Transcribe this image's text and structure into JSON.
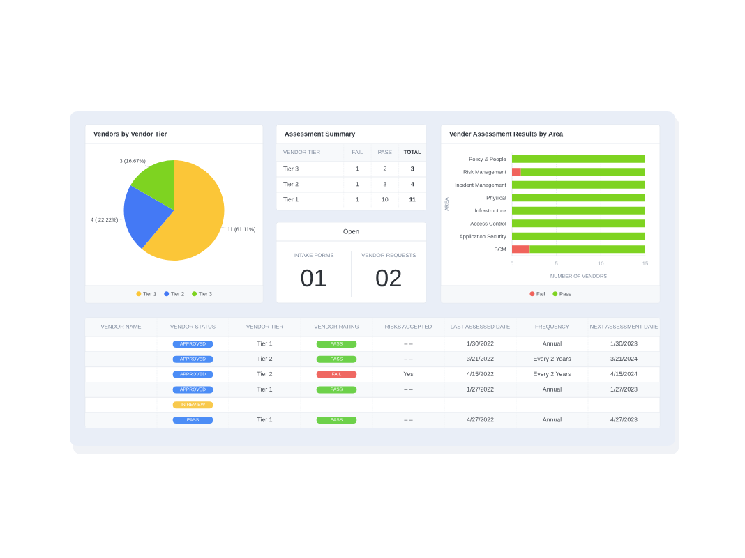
{
  "chart_data": [
    {
      "type": "pie",
      "title": "Vendors by Vendor Tier",
      "categories": [
        "Tier 1",
        "Tier 2",
        "Tier 3"
      ],
      "values": [
        11,
        4,
        3
      ],
      "colors": [
        "#fbc638",
        "#4479f5",
        "#7ed321"
      ],
      "value_labels": [
        "11 (61.11%)",
        "4 ( 22.22%)",
        "3 (16.67%)"
      ],
      "legend": "bottom"
    },
    {
      "type": "other",
      "title": "Assessment Summary",
      "categories": [
        "VENDOR TIER",
        "FAIL",
        "PASS",
        "TOTAL"
      ],
      "annotations": [
        "Tier 3",
        "1",
        "2",
        "3",
        "Tier 2",
        "1",
        "3",
        "4",
        "Tier 1",
        "1",
        "10",
        "11"
      ]
    },
    {
      "type": "other",
      "title": "Open",
      "categories": [
        "INTAKE FORMS",
        "VENDOR REQUESTS"
      ],
      "annotations": [
        "01",
        "02"
      ]
    },
    {
      "type": "bar",
      "orientation": "horizontal",
      "stacked": true,
      "title": "Vender Assessment Results by Area",
      "categories": [
        "Policy & People",
        "Risk Management",
        "Incident Management",
        "Physical",
        "Infrastructure",
        "Access Control",
        "Application Security",
        "BCM"
      ],
      "series": [
        {
          "name": "Fail",
          "color": "#f0635c",
          "values": [
            0,
            1,
            0,
            0,
            0,
            0,
            0,
            2
          ]
        },
        {
          "name": "Pass",
          "color": "#7ed321",
          "values": [
            15,
            14,
            15,
            15,
            15,
            15,
            15,
            13
          ]
        }
      ],
      "xlim": [
        0,
        15
      ],
      "xticks": [
        0,
        5,
        10,
        15
      ],
      "xlabel": "NUMBER OF VENDORS",
      "ylabel": "AREA",
      "grid": "x",
      "legend": "bottom"
    },
    {
      "type": "other",
      "y_categories": [
        null,
        null,
        null,
        null,
        null,
        null
      ],
      "annotations": [
        "VENDOR NAME",
        "VENDOR STATUS",
        "VENDOR TIER",
        "VENDOR RATING",
        "RISKS ACCEPTED",
        "LAST ASSESSED DATE",
        "FREQUENCY",
        "NEXT ASSESSMENT DATE",
        "APPROVED",
        "Tier 1",
        "PASS",
        "– –",
        "1/30/2022",
        "Annual",
        "1/30/2023",
        "APPROVED",
        "Tier 2",
        "PASS",
        "– –",
        "3/21/2022",
        "Every 2 Years",
        "3/21/2024",
        "APPROVED",
        "Tier 2",
        "FAIL",
        "Yes",
        "4/15/2022",
        "Every 2 Years",
        "4/15/2024",
        "APPROVED",
        "Tier 1",
        "PASS",
        "– –",
        "1/27/2022",
        "Annual",
        "1/27/2023",
        "IN REVIEW",
        "– –",
        "– –",
        "– –",
        "– –",
        "– –",
        "– –",
        "PASS",
        "Tier 1",
        "PASS",
        "– –",
        "4/27/2022",
        "Annual",
        "4/27/2023"
      ],
      "colors": [
        null,
        null,
        null,
        null,
        null,
        null,
        null,
        null,
        "#4c8df6",
        null,
        "#6dd14a",
        null,
        null,
        null,
        null,
        "#4c8df6",
        null,
        "#6dd14a",
        null,
        null,
        null,
        null,
        "#4c8df6",
        null,
        "#ef6862",
        null,
        null,
        null,
        null,
        "#4c8df6",
        null,
        "#6dd14a",
        null,
        null,
        null,
        null,
        "#f8c94c",
        null,
        null,
        null,
        null,
        null,
        null,
        "#4c8df6",
        null,
        "#6dd14a",
        null,
        null,
        null,
        null
      ]
    }
  ]
}
